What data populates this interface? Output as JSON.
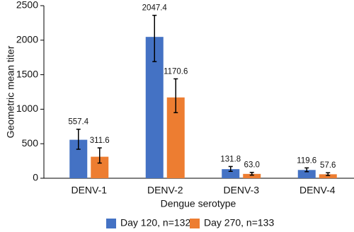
{
  "chart_data": {
    "type": "bar",
    "x_label": "Dengue serotype",
    "y_label": "Geometric mean titer",
    "categories": [
      "DENV-1",
      "DENV-2",
      "DENV-3",
      "DENV-4"
    ],
    "series": [
      {
        "name": "Day 120, n=132",
        "color": "#4472c4",
        "values": [
          557.4,
          2047.4,
          131.8,
          119.6
        ],
        "value_labels": [
          "557.4",
          "2047.4",
          "131.8",
          "119.6"
        ],
        "ci_low": [
          420,
          1690,
          100,
          95
        ],
        "ci_high": [
          710,
          2360,
          170,
          150
        ]
      },
      {
        "name": "Day 270, n=133",
        "color": "#ed7d31",
        "values": [
          311.6,
          1170.6,
          63.0,
          57.6
        ],
        "value_labels": [
          "311.6",
          "1170.6",
          "63.0",
          "57.6"
        ],
        "ci_low": [
          220,
          950,
          45,
          40
        ],
        "ci_high": [
          440,
          1440,
          85,
          80
        ]
      }
    ],
    "ylim": [
      0,
      2500
    ],
    "yticks": [
      0,
      500,
      1000,
      1500,
      2000,
      2500
    ],
    "grid": false,
    "legend": "bottom"
  }
}
